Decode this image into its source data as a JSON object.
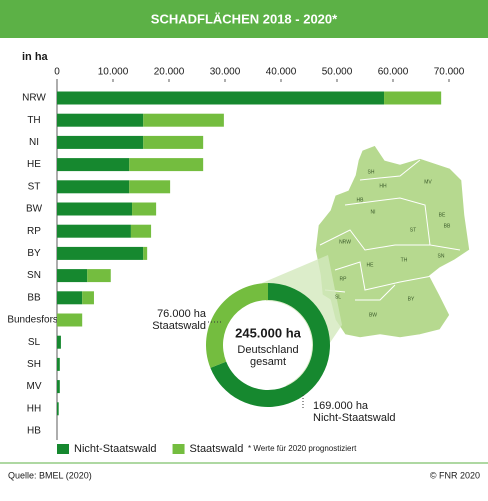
{
  "chart_data": [
    {
      "type": "stacked-bar",
      "orientation": "horizontal",
      "title": "SCHADFLÄCHEN 2018 - 2020*",
      "x_label": "in ha",
      "categories": [
        "NRW",
        "TH",
        "NI",
        "HE",
        "ST",
        "BW",
        "RP",
        "BY",
        "SN",
        "BB",
        "Bundesforst",
        "SL",
        "SH",
        "MV",
        "HH",
        "HB"
      ],
      "series": [
        {
          "name": "Nicht-Staatswald",
          "color": "#16882f",
          "values": [
            58400,
            15400,
            15400,
            12900,
            12900,
            13400,
            13200,
            15400,
            5400,
            4500,
            0,
            700,
            500,
            500,
            300,
            0
          ]
        },
        {
          "name": "Staatswald",
          "color": "#74bd3f",
          "values": [
            10200,
            14400,
            10700,
            13200,
            7300,
            4300,
            3600,
            700,
            4200,
            2100,
            4500,
            0,
            0,
            0,
            0,
            0
          ]
        }
      ],
      "xlim": [
        0,
        70000
      ],
      "xticks": [
        0,
        {
          "value": 10000,
          "label": "10.000"
        },
        {
          "value": 20000,
          "label": "20.000"
        },
        {
          "value": 30000,
          "label": "30.000"
        },
        {
          "value": 40000,
          "label": "40.000"
        },
        {
          "value": 50000,
          "label": "50.000"
        },
        {
          "value": 60000,
          "label": "60.000"
        },
        {
          "value": 70000,
          "label": "70.000"
        }
      ],
      "footnote": "* Werte für 2020 prognostiziert"
    },
    {
      "type": "donut",
      "categories": [
        "Nicht-Staatswald",
        "Staatswald"
      ],
      "values": [
        169000,
        76000
      ],
      "value_labels": [
        "169.000 ha",
        "76.000 ha"
      ],
      "colors": [
        "#16882f",
        "#74bd3f"
      ],
      "total": {
        "value": 245000,
        "label": "245.000 ha"
      },
      "center_text": [
        "Deutschland",
        "gesamt"
      ]
    }
  ],
  "map_labels": [
    "SH",
    "MV",
    "HH",
    "HB",
    "NI",
    "BE",
    "BB",
    "ST",
    "NRW",
    "SN",
    "TH",
    "HE",
    "RP",
    "SL",
    "BY",
    "BW"
  ],
  "source": "Quelle: BMEL (2020)",
  "copyright": "© FNR 2020"
}
